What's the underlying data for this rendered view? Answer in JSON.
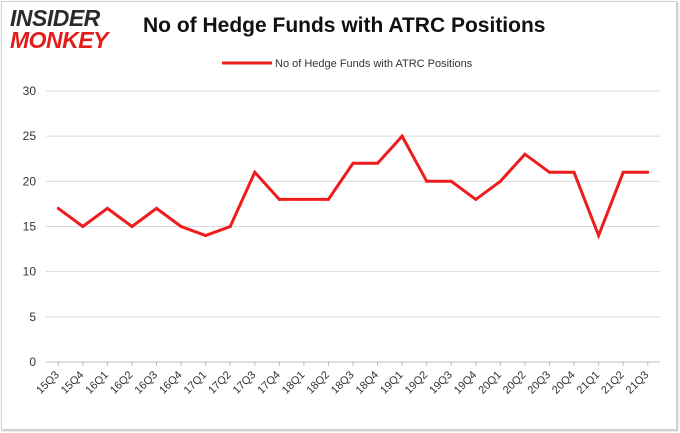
{
  "logo": {
    "line1": "INSIDER",
    "line2": "MONKEY"
  },
  "chart_data": {
    "type": "line",
    "title": "No of Hedge Funds with ATRC Positions",
    "categories": [
      "15Q3",
      "15Q4",
      "16Q1",
      "16Q2",
      "16Q3",
      "16Q4",
      "17Q1",
      "17Q2",
      "17Q3",
      "17Q4",
      "18Q1",
      "18Q2",
      "18Q3",
      "18Q4",
      "19Q1",
      "19Q2",
      "19Q3",
      "19Q4",
      "20Q1",
      "20Q2",
      "20Q3",
      "20Q4",
      "21Q1",
      "21Q2",
      "21Q3"
    ],
    "series": [
      {
        "name": "No of Hedge Funds with ATRC Positions",
        "values": [
          17,
          15,
          17,
          15,
          17,
          15,
          14,
          15,
          21,
          18,
          18,
          18,
          22,
          22,
          25,
          20,
          20,
          18,
          20,
          23,
          21,
          21,
          14,
          21,
          21
        ]
      }
    ],
    "ylim": [
      0,
      30
    ],
    "yticks": [
      0,
      5,
      10,
      15,
      20,
      25,
      30
    ],
    "grid": true,
    "legend": "top-center",
    "line_color": "#ee1c1c",
    "grid_color": "#d9d9d9"
  }
}
